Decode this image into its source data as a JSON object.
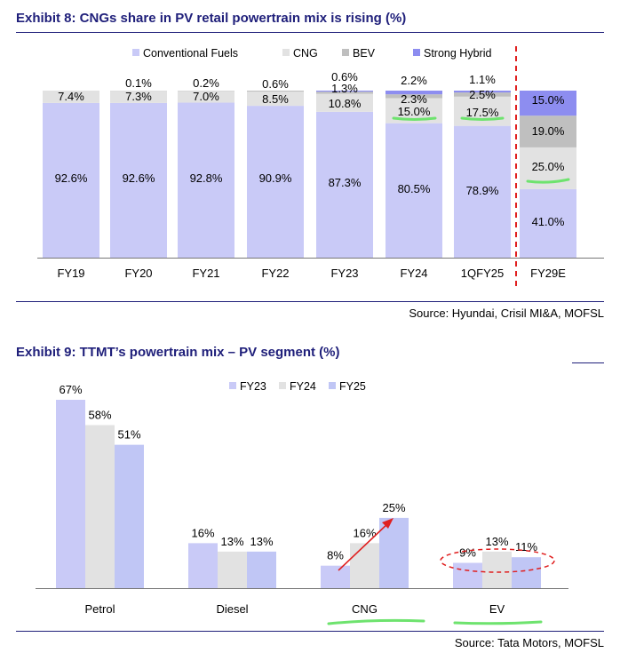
{
  "exhibit8": {
    "title": "Exhibit 8: CNGs share in PV retail powertrain mix is rising (%)",
    "source": "Source: Hyundai, Crisil MI&A, MOFSL"
  },
  "exhibit9": {
    "title": "Exhibit 9: TTMT’s powertrain mix – PV segment (%)",
    "source": "Source: Tata Motors, MOFSL"
  },
  "colors": {
    "conventional": "#c9caf7",
    "cng": "#e2e2e2",
    "bev": "#bfbfbf",
    "hybrid": "#8d8df0",
    "fy23": "#c9caf7",
    "fy24": "#e2e2e2",
    "fy25": "#c0c6f5",
    "title": "#1f1f7a",
    "highlight_green": "#6ee36e",
    "annotation_red": "#e02020"
  },
  "chart_data": [
    {
      "type": "bar",
      "stacked": true,
      "title": "Exhibit 8: CNGs share in PV retail powertrain mix is rising (%)",
      "categories": [
        "FY19",
        "FY20",
        "FY21",
        "FY22",
        "FY23",
        "FY24",
        "1QFY25",
        "FY29E"
      ],
      "series": [
        {
          "name": "Conventional Fuels",
          "values": [
            92.6,
            92.6,
            92.8,
            90.9,
            87.3,
            80.5,
            78.9,
            41.0
          ],
          "labels": [
            "92.6%",
            "92.6%",
            "92.8%",
            "90.9%",
            "87.3%",
            "80.5%",
            "78.9%",
            "41.0%"
          ]
        },
        {
          "name": "CNG",
          "values": [
            7.4,
            7.3,
            7.0,
            8.5,
            10.8,
            15.0,
            17.5,
            25.0
          ],
          "labels": [
            "7.4%",
            "7.3%",
            "7.0%",
            "8.5%",
            "10.8%",
            "15.0%",
            "17.5%",
            "25.0%"
          ]
        },
        {
          "name": "BEV",
          "values": [
            0,
            0.1,
            0.2,
            0.6,
            1.3,
            2.3,
            2.5,
            19.0
          ],
          "labels": [
            "",
            "0.1%",
            "0.2%",
            "0.6%",
            "1.3%",
            "2.3%",
            "2.5%",
            "19.0%"
          ]
        },
        {
          "name": "Strong Hybrid",
          "values": [
            0,
            0,
            0,
            0,
            0.6,
            2.2,
            1.1,
            15.0
          ],
          "labels": [
            "",
            "",
            "",
            "",
            "0.6%",
            "2.2%",
            "1.1%",
            "15.0%"
          ]
        }
      ],
      "ylim": [
        0,
        100
      ],
      "legend": "top",
      "projection_divider_before": "FY29E"
    },
    {
      "type": "bar",
      "title": "Exhibit 9: TTMT’s powertrain mix – PV segment (%)",
      "categories": [
        "Petrol",
        "Diesel",
        "CNG",
        "EV"
      ],
      "series": [
        {
          "name": "FY23",
          "values": [
            67,
            16,
            8,
            9
          ],
          "labels": [
            "67%",
            "16%",
            "8%",
            "9%"
          ]
        },
        {
          "name": "FY24",
          "values": [
            58,
            13,
            16,
            13
          ],
          "labels": [
            "58%",
            "13%",
            "16%",
            "13%"
          ]
        },
        {
          "name": "FY25",
          "values": [
            51,
            13,
            25,
            11
          ],
          "labels": [
            "51%",
            "13%",
            "25%",
            "11%"
          ]
        }
      ],
      "legend": "top"
    }
  ]
}
